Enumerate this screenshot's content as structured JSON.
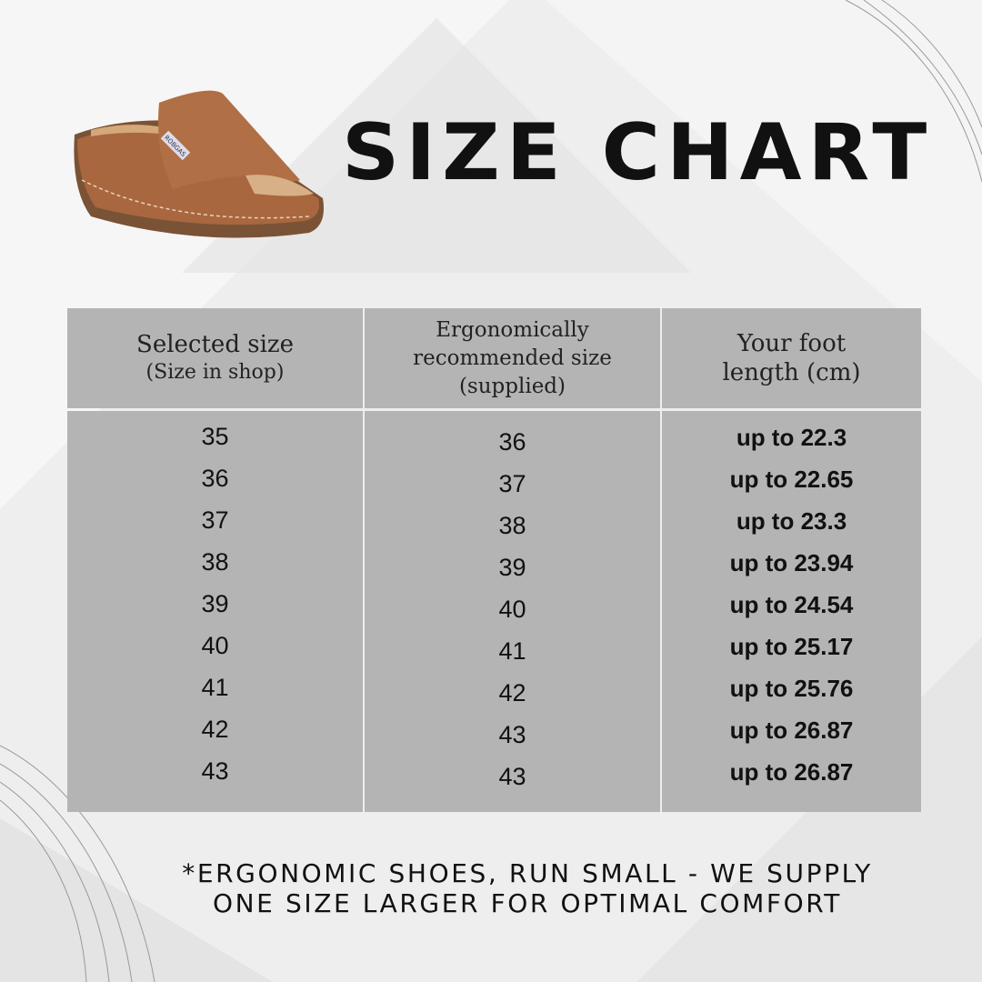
{
  "title": "SIZE CHART",
  "product_image": {
    "brand_label": "ROBGAS",
    "color": "#a8673e"
  },
  "table": {
    "headers": [
      {
        "main": "Selected size",
        "sub": "(Size in shop)"
      },
      {
        "lines": [
          "Ergonomically",
          "recommended size",
          "(supplied)"
        ]
      },
      {
        "lines": [
          "Your foot",
          "length (cm)"
        ]
      }
    ],
    "selected_size": [
      "35",
      "36",
      "37",
      "38",
      "39",
      "40",
      "41",
      "42",
      "43"
    ],
    "recommended_size": [
      "36",
      "37",
      "38",
      "39",
      "40",
      "41",
      "42",
      "43",
      "43"
    ],
    "foot_length": [
      "up to 22.3",
      "up to 22.65",
      "up to 23.3",
      "up to 23.94",
      "up to 24.54",
      "up to 25.17",
      "up to 25.76",
      "up to 26.87",
      "up to 26.87"
    ]
  },
  "note": {
    "line1": "*ERGONOMIC SHOES, RUN SMALL - WE SUPPLY",
    "line2": "ONE SIZE LARGER FOR OPTIMAL COMFORT"
  },
  "colors": {
    "table_cell": "#b4b4b4",
    "background": "#eeeeee",
    "text": "#111111"
  }
}
